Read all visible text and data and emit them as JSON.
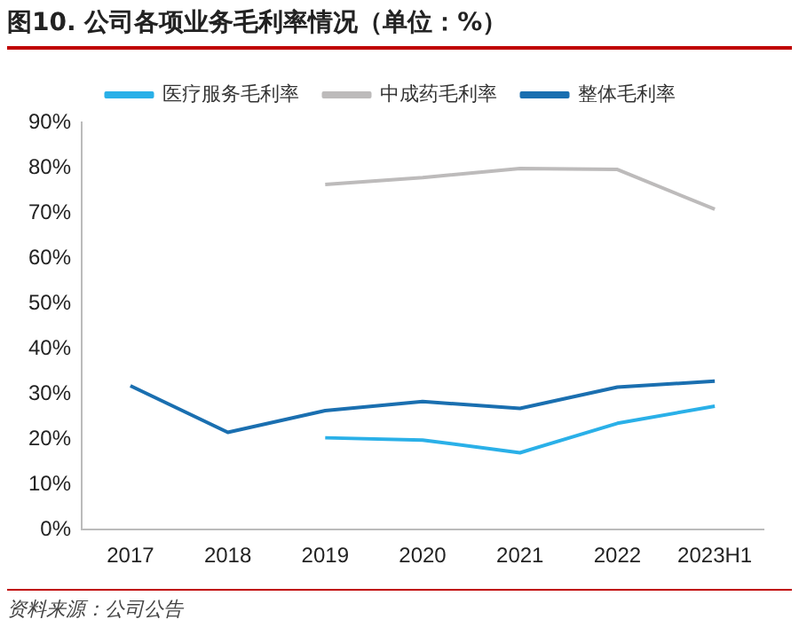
{
  "chart_data": {
    "type": "line",
    "title": "图10. 公司各项业务毛利率情况（单位：%）",
    "categories": [
      "2017",
      "2018",
      "2019",
      "2020",
      "2021",
      "2022",
      "2023H1"
    ],
    "series": [
      {
        "name": "医疗服务毛利率",
        "color": "#2ab0e8",
        "values": [
          null,
          null,
          20.3,
          19.8,
          17,
          23.5,
          27.3
        ]
      },
      {
        "name": "中成药毛利率",
        "color": "#bdbbbb",
        "values": [
          null,
          null,
          76.3,
          77.8,
          79.8,
          79.6,
          70.8
        ]
      },
      {
        "name": "整体毛利率",
        "color": "#1a6fb0",
        "values": [
          31.8,
          21.5,
          26.3,
          28.3,
          26.8,
          31.5,
          32.8
        ]
      }
    ],
    "ylim": [
      0,
      90
    ],
    "yticks": [
      {
        "value": 0,
        "label": "0%"
      },
      {
        "value": 10,
        "label": "10%"
      },
      {
        "value": 20,
        "label": "20%"
      },
      {
        "value": 30,
        "label": "30%"
      },
      {
        "value": 40,
        "label": "40%"
      },
      {
        "value": 50,
        "label": "50%"
      },
      {
        "value": 60,
        "label": "60%"
      },
      {
        "value": 70,
        "label": "70%"
      },
      {
        "value": 80,
        "label": "80%"
      },
      {
        "value": 90,
        "label": "90%"
      }
    ],
    "grid": false,
    "legend": "top",
    "marker": "none",
    "line_style": "solid",
    "annotations": [
      "资料来源：公司公告"
    ]
  }
}
